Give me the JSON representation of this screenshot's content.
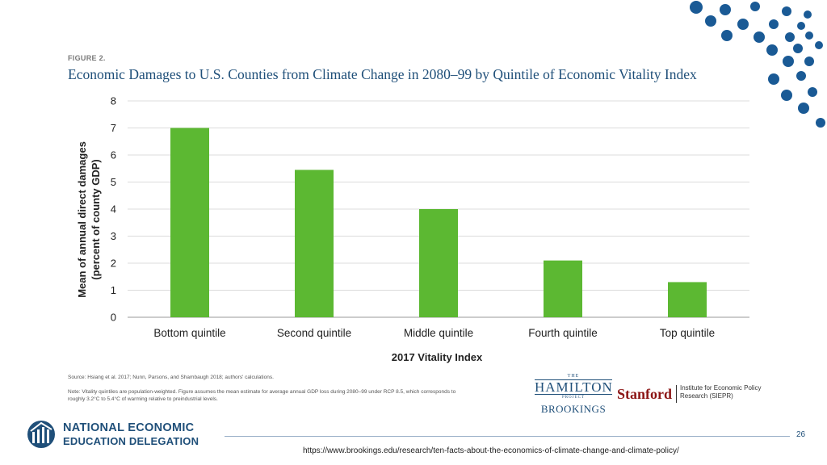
{
  "figure": {
    "label": "FIGURE 2.",
    "title": "Economic Damages to U.S. Counties from Climate Change in 2080–99 by Quintile of Economic Vitality Index"
  },
  "chart_data": {
    "type": "bar",
    "categories": [
      "Bottom quintile",
      "Second quintile",
      "Middle quintile",
      "Fourth quintile",
      "Top quintile"
    ],
    "values": [
      7.0,
      5.45,
      4.0,
      2.1,
      1.3
    ],
    "xlabel": "2017 Vitality Index",
    "ylabel": "Mean of annual direct damages",
    "ylabel2": "(percent of county GDP)",
    "ylim": [
      0,
      8
    ],
    "yticks": [
      0,
      1,
      2,
      3,
      4,
      5,
      6,
      7,
      8
    ],
    "grid": true,
    "bar_color": "#5cb832"
  },
  "source_text": "Source: Hsiang et al. 2017; Nunn, Parsons, and Shambaugh 2018; authors' calculations.",
  "note_text": "Note: Vitality quintiles are population-weighted. Figure assumes the mean estimate for average annual GDP loss during 2080–99 under RCP 8.5, which corresponds to roughly 3.2°C to 5.4°C of warming relative to preindustrial levels.",
  "logos": {
    "hamilton_the": "THE",
    "hamilton_name": "HAMILTON",
    "hamilton_project": "PROJECT",
    "brookings": "BROOKINGS",
    "stanford": "Stanford",
    "siepr": "Institute for Economic Policy Research (SIEPR)"
  },
  "footer": {
    "org_line1": "NATIONAL ECONOMIC",
    "org_line2": "EDUCATION DELEGATION",
    "page_number": "26",
    "url": "https://www.brookings.edu/research/ten-facts-about-the-economics-of-climate-change-and-climate-policy/"
  },
  "colors": {
    "accent": "#1f4f79",
    "dot": "#1a5a95"
  }
}
